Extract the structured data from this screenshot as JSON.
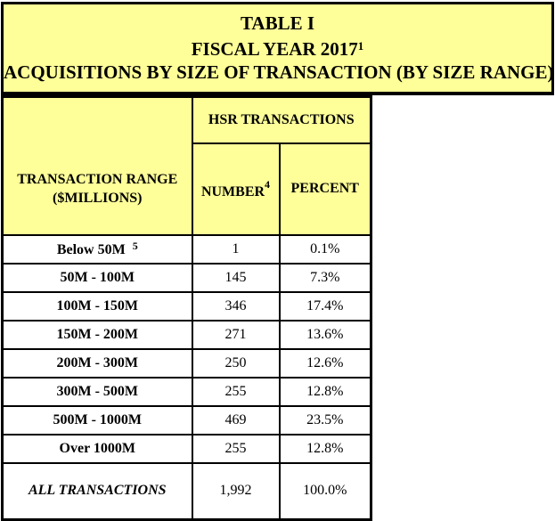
{
  "colors": {
    "header_bg": "#FFFF99",
    "border": "#000000",
    "page_bg": "#FFFFFF",
    "text": "#000000"
  },
  "title_block": {
    "line1": "TABLE I",
    "line2": "FISCAL YEAR 2017",
    "line2_sup": "1",
    "line3": "ACQUISITIONS BY SIZE OF TRANSACTION (BY SIZE RANGE)"
  },
  "table": {
    "range_header": {
      "line1": "TRANSACTION RANGE",
      "line2": "($MILLIONS)"
    },
    "group_header": "HSR TRANSACTIONS",
    "columns": {
      "number": "NUMBER",
      "number_sup": "4",
      "percent": "PERCENT"
    },
    "rows": [
      {
        "range": "Below 50M",
        "sup": "5",
        "number": "1",
        "percent": "0.1%"
      },
      {
        "range": "50M - 100M",
        "number": "145",
        "percent": "7.3%"
      },
      {
        "range": "100M - 150M",
        "number": "346",
        "percent": "17.4%"
      },
      {
        "range": "150M - 200M",
        "number": "271",
        "percent": "13.6%"
      },
      {
        "range": "200M - 300M",
        "number": "250",
        "percent": "12.6%"
      },
      {
        "range": "300M - 500M",
        "number": "255",
        "percent": "12.8%"
      },
      {
        "range": "500M - 1000M",
        "number": "469",
        "percent": "23.5%"
      },
      {
        "range": "Over 1000M",
        "number": "255",
        "percent": "12.8%"
      }
    ],
    "total_row": {
      "range": "ALL TRANSACTIONS",
      "number": "1,992",
      "percent": "100.0%"
    }
  }
}
